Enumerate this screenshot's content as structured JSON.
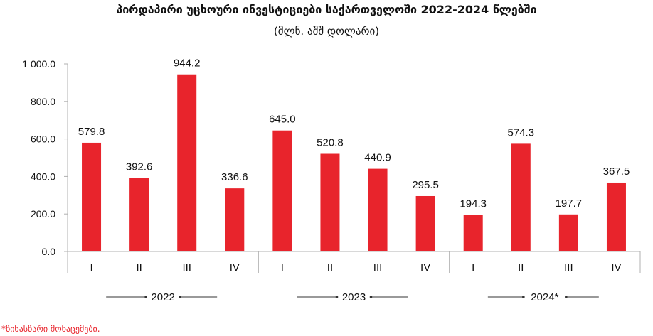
{
  "chart_data": {
    "type": "bar",
    "title": "პირდაპირი უცხოური ინვესტიციები საქართველოში 2022-2024 წლებში",
    "subtitle": "(მლნ. აშშ დოლარი)",
    "categories": [
      "I",
      "II",
      "III",
      "IV",
      "I",
      "II",
      "III",
      "IV",
      "I",
      "II",
      "III",
      "IV"
    ],
    "groups": [
      {
        "label": "2022",
        "start": 0,
        "end": 3
      },
      {
        "label": "2023",
        "start": 4,
        "end": 7
      },
      {
        "label": "2024*",
        "start": 8,
        "end": 11
      }
    ],
    "values": [
      579.8,
      392.6,
      944.2,
      336.6,
      645.0,
      520.8,
      440.9,
      295.5,
      194.3,
      574.3,
      197.7,
      367.5
    ],
    "data_labels": [
      "579.8",
      "392.6",
      "944.2",
      "336.6",
      "645.0",
      "520.8",
      "440.9",
      "295.5",
      "194.3",
      "574.3",
      "197.7",
      "367.5"
    ],
    "yticks": [
      0,
      200,
      400,
      600,
      800,
      1000
    ],
    "ytick_labels": [
      "0.0",
      "200.0",
      "400.0",
      "600.0",
      "800.0",
      "1 000.0"
    ],
    "ylim": [
      0,
      1000
    ],
    "grid": false,
    "colors": {
      "bar": "#e8242c",
      "axis": "#b0b0b0"
    }
  },
  "footnote": "*წინასწარი მონაცემები."
}
